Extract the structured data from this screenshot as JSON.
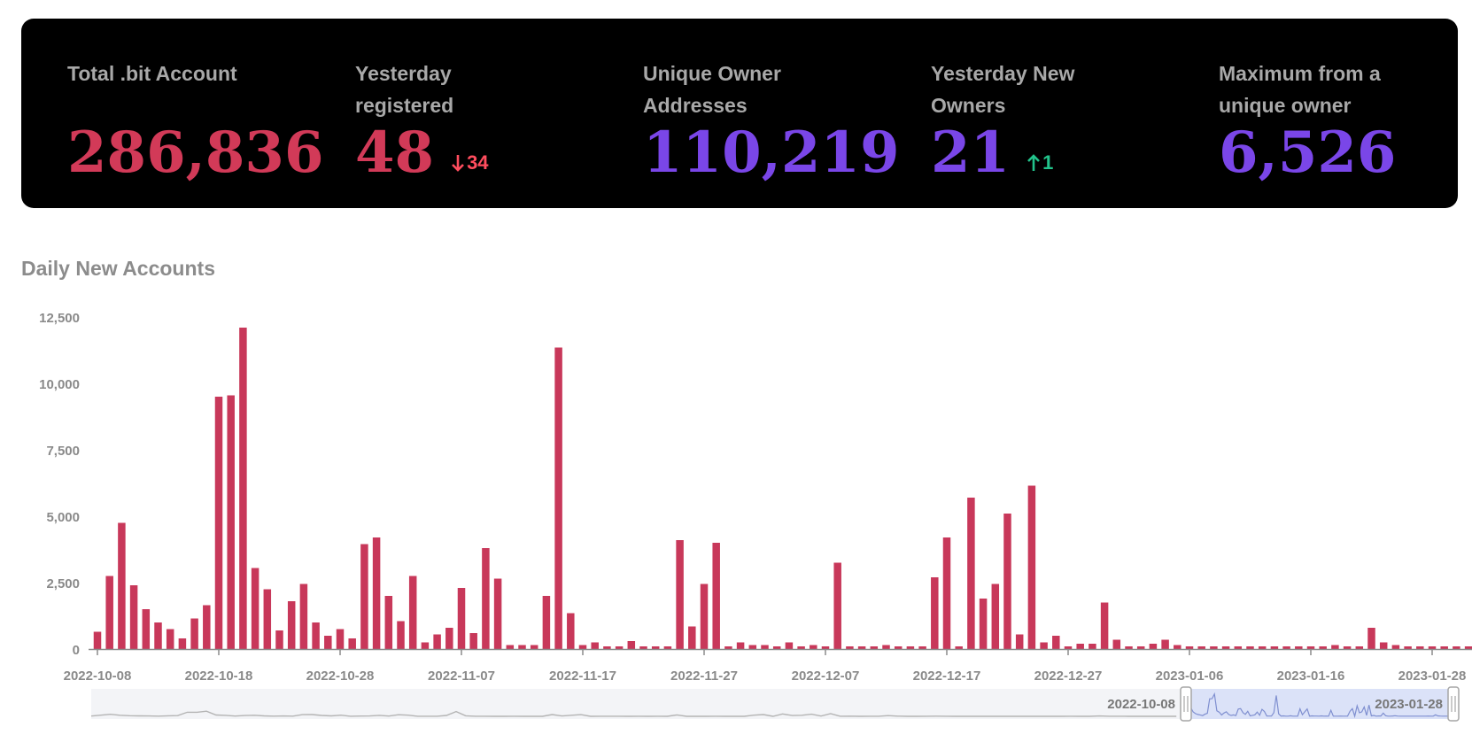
{
  "stats": [
    {
      "label": "Total .bit Account",
      "value": "286,836",
      "color": "#d23a58"
    },
    {
      "label": "Yesterday registered",
      "value": "48",
      "color": "#d23a58",
      "delta": "34",
      "delta_dir": "down"
    },
    {
      "label": "Unique Owner Addresses",
      "value": "110,219",
      "color": "#7a46e8"
    },
    {
      "label": "Yesterday New Owners",
      "value": "21",
      "color": "#7a46e8",
      "delta": "1",
      "delta_dir": "up"
    },
    {
      "label": "Maximum from a unique owner",
      "value": "6,526",
      "color": "#7a46e8"
    }
  ],
  "chart_title": "Daily New Accounts",
  "chart_data": {
    "type": "bar",
    "start_date": "2022-10-08",
    "x_tick_labels": [
      "2022-10-08",
      "2022-10-18",
      "2022-10-28",
      "2022-11-07",
      "2022-11-17",
      "2022-11-27",
      "2022-12-07",
      "2022-12-17",
      "2022-12-27",
      "2023-01-06",
      "2023-01-16",
      "2023-01-28"
    ],
    "y_ticks": [
      "0",
      "2,500",
      "5,000",
      "7,500",
      "10,000",
      "12,500"
    ],
    "ylim": [
      0,
      12500
    ],
    "bar_color": "#c8385a",
    "values": [
      650,
      2750,
      4750,
      2400,
      1500,
      1000,
      750,
      400,
      1150,
      1650,
      9500,
      9550,
      12100,
      3050,
      2250,
      700,
      1800,
      2450,
      1000,
      500,
      750,
      400,
      3950,
      4200,
      2000,
      1050,
      2750,
      250,
      550,
      800,
      2300,
      600,
      3800,
      2650,
      150,
      150,
      150,
      2000,
      11350,
      1350,
      150,
      250,
      100,
      100,
      300,
      100,
      100,
      100,
      4100,
      850,
      2450,
      4000,
      100,
      250,
      150,
      150,
      100,
      250,
      100,
      150,
      100,
      3250,
      100,
      100,
      100,
      150,
      100,
      100,
      100,
      2700,
      4200,
      100,
      5700,
      1900,
      2450,
      5100,
      550,
      6150,
      250,
      500,
      100,
      200,
      200,
      1750,
      350,
      100,
      100,
      200,
      350,
      150,
      100,
      100,
      100,
      100,
      100,
      100,
      100,
      100,
      100,
      100,
      100,
      100,
      150,
      100,
      100,
      800,
      250,
      150,
      100,
      100,
      100,
      100,
      100,
      100
    ],
    "zoom": {
      "start_label": "2022-10-08",
      "end_label": "2023-01-28"
    }
  }
}
